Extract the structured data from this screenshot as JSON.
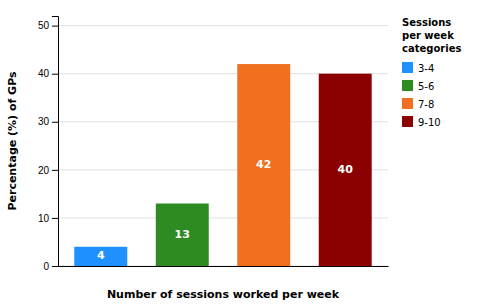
{
  "chart_data": {
    "type": "bar",
    "categories": [
      "3-4",
      "5-6",
      "7-8",
      "9-10"
    ],
    "values": [
      4,
      13,
      42,
      40
    ],
    "colors": [
      "#1E90FF",
      "#2E8B22",
      "#F07020",
      "#8B0000"
    ],
    "xlabel": "Number of sessions worked per week",
    "ylabel": "Percentage (%) of GPs",
    "ylim": [
      0,
      52
    ],
    "yticks": [
      0,
      10,
      20,
      30,
      40,
      50
    ],
    "grid": true,
    "data_labels": true,
    "tick_labels": "y",
    "legend": "right",
    "legend_title": "Sessions\nper week\ncategories"
  }
}
